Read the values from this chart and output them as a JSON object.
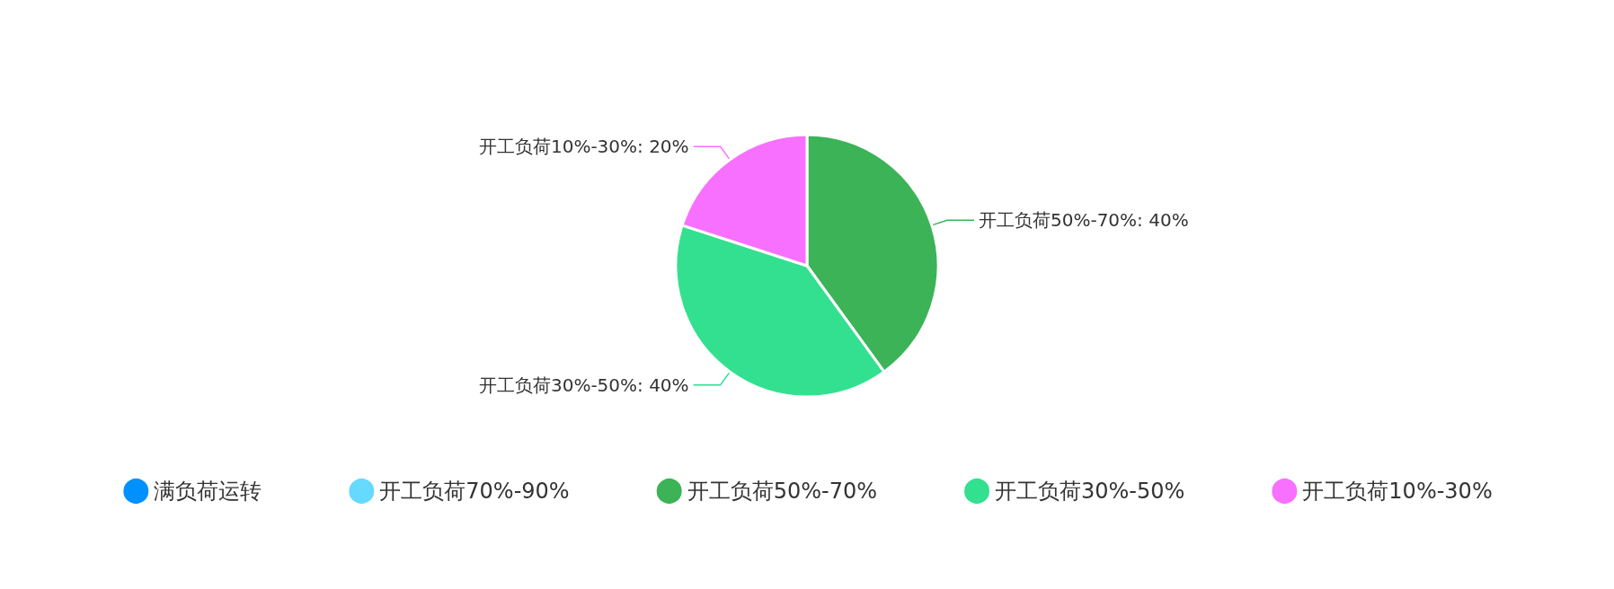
{
  "chart_data": {
    "type": "pie",
    "categories": [
      "满负荷运转",
      "开工负荷70%-90%",
      "开工负荷50%-70%",
      "开工负荷30%-50%",
      "开工负荷10%-30%"
    ],
    "values": [
      0,
      0,
      40,
      40,
      20
    ],
    "colors": [
      "#0091ff",
      "#66d9ff",
      "#3bb356",
      "#33e08f",
      "#f870ff"
    ],
    "value_labels": [
      null,
      null,
      "开工负荷50%-70%: 40%",
      "开工负荷30%-50%: 40%",
      "开工负荷10%-30%: 20%"
    ],
    "legend": "bottom"
  }
}
